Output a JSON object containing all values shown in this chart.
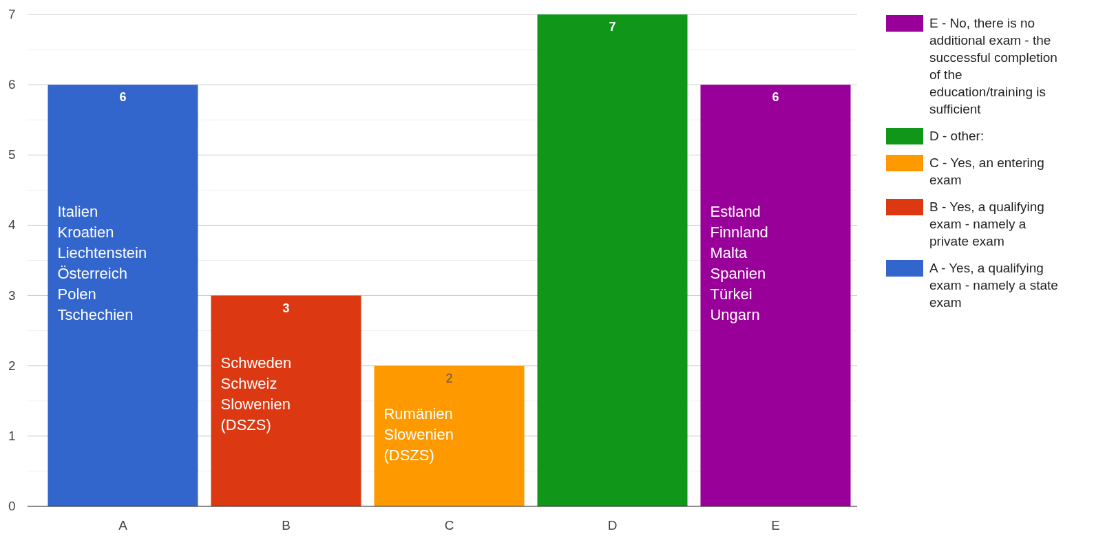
{
  "chart_data": {
    "type": "bar",
    "stacked": true,
    "categories": [
      "A",
      "B",
      "C",
      "D",
      "E"
    ],
    "series": [
      {
        "name": "A - Yes, a qualifying exam - namely a state exam",
        "color": "#3366cc",
        "values": [
          6,
          null,
          null,
          null,
          null
        ]
      },
      {
        "name": "B - Yes, a qualifying exam - namely a private exam",
        "color": "#dc3912",
        "values": [
          null,
          3,
          null,
          null,
          null
        ]
      },
      {
        "name": "C - Yes, an entering exam",
        "color": "#ff9900",
        "values": [
          null,
          null,
          2,
          null,
          null
        ]
      },
      {
        "name": "D - other:",
        "color": "#109618",
        "values": [
          null,
          null,
          null,
          7,
          null
        ]
      },
      {
        "name": "E - No, there is no additional exam - the successful completion of the education/training is sufficient",
        "color": "#990099",
        "values": [
          null,
          null,
          null,
          null,
          6
        ]
      }
    ],
    "ylim": [
      0,
      7
    ],
    "yticks": [
      0,
      {
        "value": 0.5,
        "label": null
      },
      1,
      {
        "value": 1.5,
        "label": null
      },
      2,
      {
        "value": 2.5,
        "label": null
      },
      3,
      {
        "value": 3.5,
        "label": null
      },
      4,
      {
        "value": 4.5,
        "label": null
      },
      5,
      {
        "value": 5.5,
        "label": null
      },
      6,
      {
        "value": 6.5,
        "label": null
      },
      7
    ],
    "grid": "y",
    "data_labels": true,
    "legend": "right",
    "annotations": [
      "Italien\nKroatien\nLiechtenstein\nÖsterreich\nPolen\nTschechien",
      "Schweden\nSchweiz\nSlowenien\n(DSZS)",
      "Rumänien\nSlowenien\n(DSZS)",
      "Estland\nFinnland\nMalta\nSpanien\nTürkei\nUngarn"
    ]
  }
}
